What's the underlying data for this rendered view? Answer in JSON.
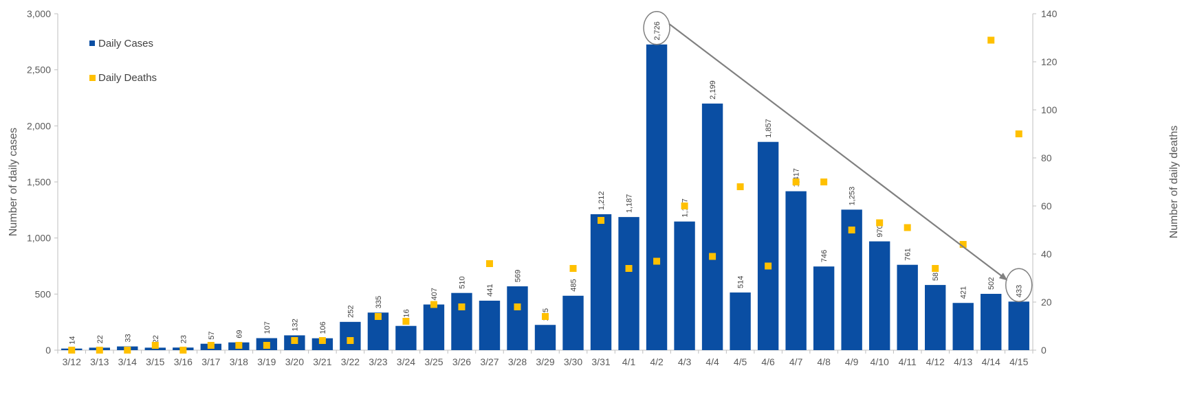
{
  "chart_data": {
    "type": "bar",
    "categories": [
      "3/12",
      "3/13",
      "3/14",
      "3/15",
      "3/16",
      "3/17",
      "3/18",
      "3/19",
      "3/20",
      "3/21",
      "3/22",
      "3/23",
      "3/24",
      "3/25",
      "3/26",
      "3/27",
      "3/28",
      "3/29",
      "3/30",
      "3/31",
      "4/1",
      "4/2",
      "4/3",
      "4/4",
      "4/5",
      "4/6",
      "4/7",
      "4/8",
      "4/9",
      "4/10",
      "4/11",
      "4/12",
      "4/13",
      "4/14",
      "4/15"
    ],
    "series": [
      {
        "name": "Daily Cases",
        "kind": "bar",
        "axis": "left",
        "values": [
          14,
          22,
          33,
          22,
          23,
          57,
          69,
          107,
          132,
          106,
          252,
          335,
          216,
          407,
          510,
          441,
          569,
          225,
          485,
          1212,
          1187,
          2726,
          1147,
          2199,
          514,
          1857,
          1417,
          746,
          1253,
          970,
          761,
          581,
          421,
          502,
          433
        ],
        "labels": [
          "14",
          "22",
          "33",
          "22",
          "23",
          "57",
          "69",
          "107",
          "132",
          "106",
          "252",
          "335",
          "216",
          "407",
          "510",
          "441",
          "569",
          "225",
          "485",
          "1,212",
          "1,187",
          "2,726",
          "1,147",
          "2,199",
          "514",
          "1,857",
          "1,417",
          "746",
          "1,253",
          "970",
          "761",
          "581",
          "421",
          "502",
          "433"
        ]
      },
      {
        "name": "Daily Deaths",
        "kind": "scatter",
        "axis": "right",
        "values": [
          0,
          0,
          0,
          2,
          0,
          2,
          2,
          2,
          4,
          4,
          4,
          14,
          12,
          19,
          18,
          36,
          18,
          14,
          34,
          54,
          34,
          37,
          60,
          39,
          68,
          35,
          70,
          70,
          50,
          53,
          51,
          34,
          44,
          129,
          90
        ]
      }
    ],
    "left_axis": {
      "label": "Number of daily cases",
      "ylim": [
        0,
        3000
      ],
      "ticks": [
        "0",
        "500",
        "1,000",
        "1,500",
        "2,000",
        "2,500",
        "3,000"
      ],
      "tick_values": [
        0,
        500,
        1000,
        1500,
        2000,
        2500,
        3000
      ]
    },
    "right_axis": {
      "label": "Number of daily deaths",
      "ylim": [
        0,
        140
      ],
      "ticks": [
        "0",
        "20",
        "40",
        "60",
        "80",
        "100",
        "120",
        "140"
      ],
      "tick_values": [
        0,
        20,
        40,
        60,
        80,
        100,
        120,
        140
      ]
    },
    "legend": {
      "placement": "top-left",
      "entries": [
        "Daily Cases",
        "Daily Deaths"
      ]
    },
    "annotations": {
      "circled": [
        "2,726",
        "433"
      ],
      "arrow": "from 4/2 peak to 4/15"
    },
    "grid": false,
    "colors": {
      "cases": "#0a4ea3",
      "deaths": "#ffc000",
      "axis": "#bfbfbf",
      "text": "#595959",
      "annotation": "#808080"
    }
  }
}
